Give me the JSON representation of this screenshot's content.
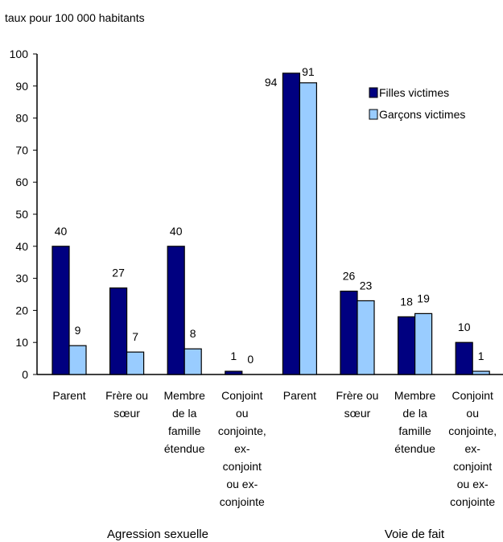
{
  "chart_data": {
    "type": "bar",
    "ylabel": "taux pour 100 000 habitants",
    "ylim": [
      0,
      100
    ],
    "yticks": [
      0,
      10,
      20,
      30,
      40,
      50,
      60,
      70,
      80,
      90,
      100
    ],
    "groups": [
      {
        "label": "Agression sexuelle",
        "start": 0,
        "count": 4
      },
      {
        "label": "Voie de fait",
        "start": 4,
        "count": 4
      }
    ],
    "categories": [
      [
        "Parent"
      ],
      [
        "Frère ou",
        "sœur"
      ],
      [
        "Membre",
        "de la",
        "famille",
        "étendue"
      ],
      [
        "Conjoint",
        "ou",
        "conjointe,",
        "ex-",
        "conjoint",
        "ou ex-",
        "conjointe"
      ],
      [
        "Parent"
      ],
      [
        "Frère ou",
        "sœur"
      ],
      [
        "Membre",
        "de la",
        "famille",
        "étendue"
      ],
      [
        "Conjoint",
        "ou",
        "conjointe,",
        "ex-",
        "conjoint",
        "ou ex-",
        "conjointe"
      ]
    ],
    "series": [
      {
        "name": "Filles victimes",
        "color": "#000080",
        "values": [
          40,
          27,
          40,
          1,
          94,
          26,
          18,
          10
        ]
      },
      {
        "name": "Garçons victimes",
        "color": "#99ccff",
        "values": [
          9,
          7,
          8,
          0,
          91,
          23,
          19,
          1
        ]
      }
    ],
    "legend_position": "top-right",
    "grid": false
  }
}
